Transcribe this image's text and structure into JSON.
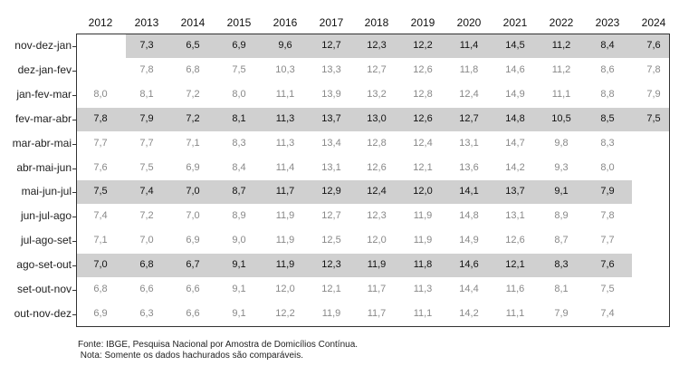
{
  "chart_data": {
    "type": "table",
    "columns": [
      "2012",
      "2013",
      "2014",
      "2015",
      "2016",
      "2017",
      "2018",
      "2019",
      "2020",
      "2021",
      "2022",
      "2023",
      "2024"
    ],
    "rows": [
      {
        "label": "nov-dez-jan",
        "highlight": true,
        "values": [
          null,
          "7,3",
          "6,5",
          "6,9",
          "9,6",
          "12,7",
          "12,3",
          "12,2",
          "11,4",
          "14,5",
          "11,2",
          "8,4",
          "7,6"
        ]
      },
      {
        "label": "dez-jan-fev",
        "highlight": false,
        "values": [
          null,
          "7,8",
          "6,8",
          "7,5",
          "10,3",
          "13,3",
          "12,7",
          "12,6",
          "11,8",
          "14,6",
          "11,2",
          "8,6",
          "7,8"
        ]
      },
      {
        "label": "jan-fev-mar",
        "highlight": false,
        "values": [
          "8,0",
          "8,1",
          "7,2",
          "8,0",
          "11,1",
          "13,9",
          "13,2",
          "12,8",
          "12,4",
          "14,9",
          "11,1",
          "8,8",
          "7,9"
        ]
      },
      {
        "label": "fev-mar-abr",
        "highlight": true,
        "values": [
          "7,8",
          "7,9",
          "7,2",
          "8,1",
          "11,3",
          "13,7",
          "13,0",
          "12,6",
          "12,7",
          "14,8",
          "10,5",
          "8,5",
          "7,5"
        ]
      },
      {
        "label": "mar-abr-mai",
        "highlight": false,
        "values": [
          "7,7",
          "7,7",
          "7,1",
          "8,3",
          "11,3",
          "13,4",
          "12,8",
          "12,4",
          "13,1",
          "14,7",
          "9,8",
          "8,3",
          null
        ]
      },
      {
        "label": "abr-mai-jun",
        "highlight": false,
        "values": [
          "7,6",
          "7,5",
          "6,9",
          "8,4",
          "11,4",
          "13,1",
          "12,6",
          "12,1",
          "13,6",
          "14,2",
          "9,3",
          "8,0",
          null
        ]
      },
      {
        "label": "mai-jun-jul",
        "highlight": true,
        "values": [
          "7,5",
          "7,4",
          "7,0",
          "8,7",
          "11,7",
          "12,9",
          "12,4",
          "12,0",
          "14,1",
          "13,7",
          "9,1",
          "7,9",
          null
        ]
      },
      {
        "label": "jun-jul-ago",
        "highlight": false,
        "values": [
          "7,4",
          "7,2",
          "7,0",
          "8,9",
          "11,9",
          "12,7",
          "12,3",
          "11,9",
          "14,8",
          "13,1",
          "8,9",
          "7,8",
          null
        ]
      },
      {
        "label": "jul-ago-set",
        "highlight": false,
        "values": [
          "7,1",
          "7,0",
          "6,9",
          "9,0",
          "11,9",
          "12,5",
          "12,0",
          "11,9",
          "14,9",
          "12,6",
          "8,7",
          "7,7",
          null
        ]
      },
      {
        "label": "ago-set-out",
        "highlight": true,
        "values": [
          "7,0",
          "6,8",
          "6,7",
          "9,1",
          "11,9",
          "12,3",
          "11,9",
          "11,8",
          "14,6",
          "12,1",
          "8,3",
          "7,6",
          null
        ]
      },
      {
        "label": "set-out-nov",
        "highlight": false,
        "values": [
          "6,8",
          "6,6",
          "6,6",
          "9,1",
          "12,0",
          "12,1",
          "11,7",
          "11,3",
          "14,4",
          "11,6",
          "8,1",
          "7,5",
          null
        ]
      },
      {
        "label": "out-nov-dez",
        "highlight": false,
        "values": [
          "6,9",
          "6,3",
          "6,6",
          "9,1",
          "12,2",
          "11,9",
          "11,7",
          "11,1",
          "14,2",
          "11,1",
          "7,9",
          "7,4",
          null
        ]
      }
    ],
    "highlight_color": "#d0d0d0",
    "source": "Fonte: IBGE, Pesquisa Nacional por Amostra de Domicílios Contínua.",
    "note": " Nota: Somente os dados hachurados são comparáveis."
  }
}
